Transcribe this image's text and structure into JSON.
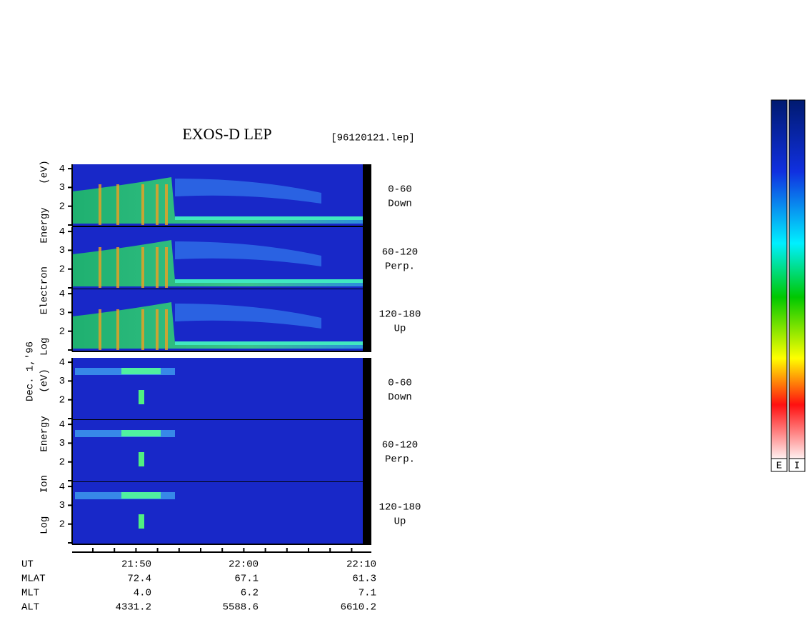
{
  "title": "EXOS-D LEP",
  "file": "[96120121.lep]",
  "date": "Dec. 1,'96",
  "groups": [
    {
      "axis_label": "Log Electron Energy (eV)",
      "kind": "electron",
      "panels": [
        {
          "pitch": "0-60",
          "dir": "Down",
          "yticks": [
            2,
            3,
            4
          ]
        },
        {
          "pitch": "60-120",
          "dir": "Perp.",
          "yticks": [
            2,
            3,
            4
          ]
        },
        {
          "pitch": "120-180",
          "dir": "Up",
          "yticks": [
            2,
            3,
            4
          ]
        }
      ]
    },
    {
      "axis_label": "Log Ion Energy (eV)",
      "kind": "ion",
      "panels": [
        {
          "pitch": "0-60",
          "dir": "Down",
          "yticks": [
            2,
            3,
            4
          ]
        },
        {
          "pitch": "60-120",
          "dir": "Perp.",
          "yticks": [
            2,
            3,
            4
          ]
        },
        {
          "pitch": "120-180",
          "dir": "Up",
          "yticks": [
            2,
            3,
            4
          ]
        }
      ]
    }
  ],
  "table": {
    "rows": [
      [
        "UT",
        "21:50",
        "22:00",
        "22:10"
      ],
      [
        "MLAT",
        "72.4",
        "67.1",
        "61.3"
      ],
      [
        "MLT",
        "4.0",
        "6.2",
        "7.1"
      ],
      [
        "ALT",
        "4331.2",
        "5588.6",
        "6610.2"
      ]
    ]
  },
  "colorbar": [
    "E",
    "I"
  ]
}
